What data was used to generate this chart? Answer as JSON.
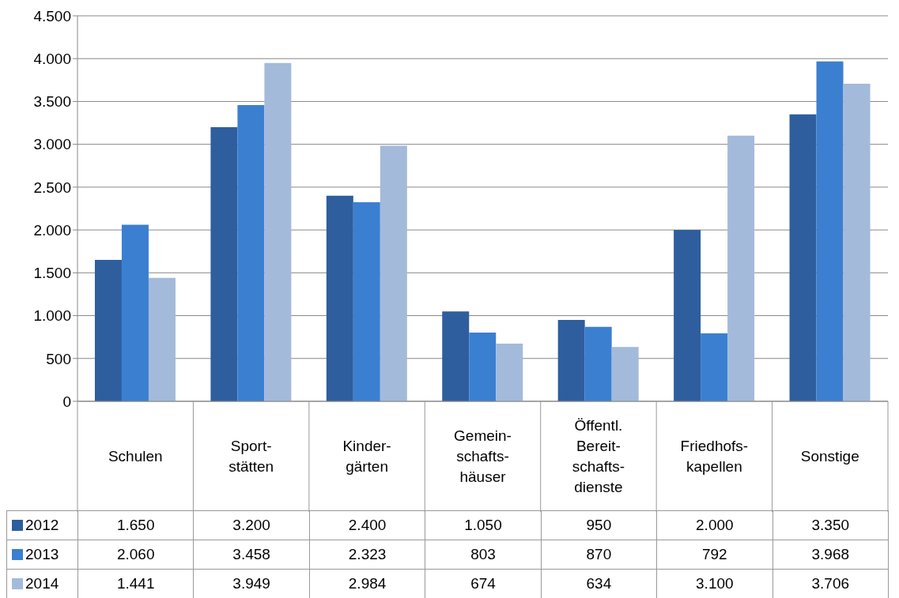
{
  "chart_data": {
    "type": "bar",
    "categories": [
      "Schulen",
      "Sport-\nstätten",
      "Kinder-\ngärten",
      "Gemein-\nschafts-\nhäuser",
      "Öffentl.\nBereit-\nschafts-\ndienste",
      "Friedhofs-\nkapellen",
      "Sonstige"
    ],
    "series": [
      {
        "name": "2012",
        "color": "#2e5e9e",
        "values": [
          1650,
          3200,
          2400,
          1050,
          950,
          2000,
          3350
        ],
        "value_labels": [
          "1.650",
          "3.200",
          "2.400",
          "1.050",
          "950",
          "2.000",
          "3.350"
        ]
      },
      {
        "name": "2013",
        "color": "#3b7fd1",
        "values": [
          2060,
          3458,
          2323,
          803,
          870,
          792,
          3968
        ],
        "value_labels": [
          "2.060",
          "3.458",
          "2.323",
          "803",
          "870",
          "792",
          "3.968"
        ]
      },
      {
        "name": "2014",
        "color": "#a3badb",
        "values": [
          1441,
          3949,
          2984,
          674,
          634,
          3100,
          3706
        ],
        "value_labels": [
          "1.441",
          "3.949",
          "2.984",
          "674",
          "634",
          "3.100",
          "3.706"
        ]
      }
    ],
    "ylim": [
      0,
      4500
    ],
    "yticks": [
      0,
      500,
      {
        "value": 1000,
        "label": "1.000"
      },
      {
        "value": 1500,
        "label": "1.500"
      },
      {
        "value": 2000,
        "label": "2.000"
      },
      {
        "value": 2500,
        "label": "2.500"
      },
      {
        "value": 3000,
        "label": "3.000"
      },
      {
        "value": 3500,
        "label": "3.500"
      },
      {
        "value": 4000,
        "label": "4.000"
      },
      {
        "value": 4500,
        "label": "4.500"
      }
    ],
    "grid": "y",
    "legend": "bottom"
  }
}
